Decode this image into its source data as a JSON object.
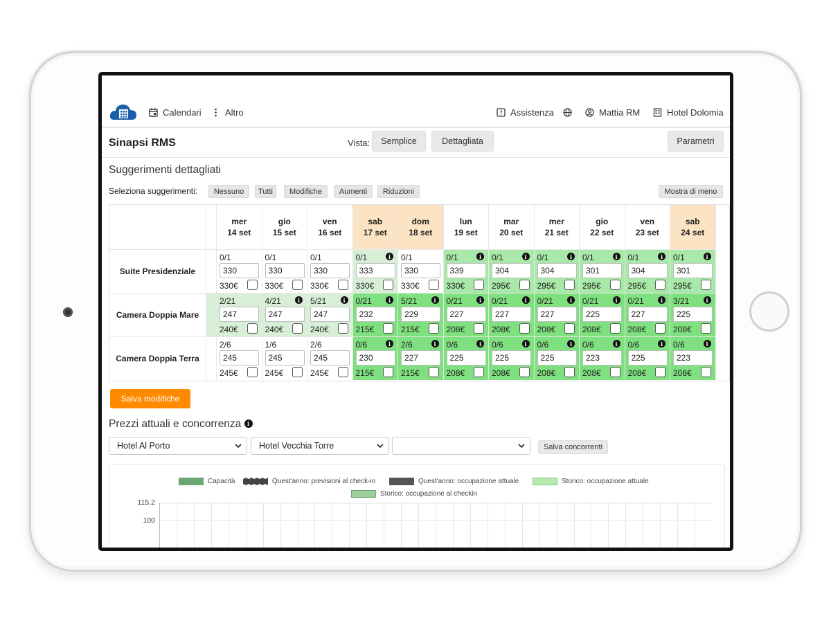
{
  "nav": {
    "items": [
      {
        "label": "Calendari",
        "icon": "calendar-icon"
      },
      {
        "label": "Altro",
        "icon": "more-vertical-icon"
      }
    ],
    "right": [
      {
        "label": "Assistenza",
        "icon": "help-icon"
      },
      {
        "label": "",
        "icon": "globe-icon"
      },
      {
        "label": "Mattia RM",
        "icon": "user-icon"
      },
      {
        "label": "Hotel Dolomia",
        "icon": "building-icon"
      }
    ]
  },
  "header": {
    "title": "Sinapsi RMS",
    "vista_label": "Vista:",
    "view_buttons": [
      "Semplice",
      "Dettagliata"
    ],
    "params_button": "Parametri"
  },
  "suggestions": {
    "title": "Suggerimenti dettagliati",
    "select_label": "Seleziona suggerimenti:",
    "chips": [
      "Nessuno",
      "Tutti",
      "Modifiche",
      "Aumenti",
      "Riduzioni"
    ],
    "show_less": "Mostra di meno"
  },
  "table": {
    "columns": [
      {
        "day": "mer",
        "date": "14 set",
        "weekend": false
      },
      {
        "day": "gio",
        "date": "15 set",
        "weekend": false
      },
      {
        "day": "ven",
        "date": "16 set",
        "weekend": false
      },
      {
        "day": "sab",
        "date": "17 set",
        "weekend": true
      },
      {
        "day": "dom",
        "date": "18 set",
        "weekend": true
      },
      {
        "day": "lun",
        "date": "19 set",
        "weekend": false
      },
      {
        "day": "mar",
        "date": "20 set",
        "weekend": false
      },
      {
        "day": "mer",
        "date": "21 set",
        "weekend": false
      },
      {
        "day": "gio",
        "date": "22 set",
        "weekend": false
      },
      {
        "day": "ven",
        "date": "23 set",
        "weekend": false
      },
      {
        "day": "sab",
        "date": "24 set",
        "weekend": true
      }
    ],
    "rows": [
      {
        "name": "Suite Presidenziale",
        "cells": [
          {
            "avail": "0/1",
            "value": "330",
            "price": "330€",
            "shade": "none",
            "info": false
          },
          {
            "avail": "0/1",
            "value": "330",
            "price": "330€",
            "shade": "none",
            "info": false
          },
          {
            "avail": "0/1",
            "value": "330",
            "price": "330€",
            "shade": "none",
            "info": false
          },
          {
            "avail": "0/1",
            "value": "333",
            "price": "330€",
            "shade": "light",
            "info": true
          },
          {
            "avail": "0/1",
            "value": "330",
            "price": "330€",
            "shade": "none",
            "info": false
          },
          {
            "avail": "0/1",
            "value": "339",
            "price": "330€",
            "shade": "mid",
            "info": true
          },
          {
            "avail": "0/1",
            "value": "304",
            "price": "295€",
            "shade": "mid",
            "info": true
          },
          {
            "avail": "0/1",
            "value": "304",
            "price": "295€",
            "shade": "mid",
            "info": true
          },
          {
            "avail": "0/1",
            "value": "301",
            "price": "295€",
            "shade": "mid",
            "info": true
          },
          {
            "avail": "0/1",
            "value": "304",
            "price": "295€",
            "shade": "mid",
            "info": true
          },
          {
            "avail": "0/1",
            "value": "301",
            "price": "295€",
            "shade": "mid",
            "info": true
          }
        ]
      },
      {
        "name": "Camera Doppia Mare",
        "cells": [
          {
            "avail": "2/21",
            "value": "247",
            "price": "240€",
            "shade": "light",
            "info": false
          },
          {
            "avail": "4/21",
            "value": "247",
            "price": "240€",
            "shade": "light",
            "info": true
          },
          {
            "avail": "5/21",
            "value": "247",
            "price": "240€",
            "shade": "light",
            "info": true
          },
          {
            "avail": "0/21",
            "value": "232",
            "price": "215€",
            "shade": "strong",
            "info": true
          },
          {
            "avail": "5/21",
            "value": "229",
            "price": "215€",
            "shade": "strong",
            "info": true
          },
          {
            "avail": "0/21",
            "value": "227",
            "price": "208€",
            "shade": "strong",
            "info": true
          },
          {
            "avail": "0/21",
            "value": "227",
            "price": "208€",
            "shade": "strong",
            "info": true
          },
          {
            "avail": "0/21",
            "value": "227",
            "price": "208€",
            "shade": "strong",
            "info": true
          },
          {
            "avail": "0/21",
            "value": "225",
            "price": "208€",
            "shade": "strong",
            "info": true
          },
          {
            "avail": "0/21",
            "value": "227",
            "price": "208€",
            "shade": "strong",
            "info": true
          },
          {
            "avail": "3/21",
            "value": "225",
            "price": "208€",
            "shade": "strong",
            "info": true
          }
        ]
      },
      {
        "name": "Camera Doppia Terra",
        "cells": [
          {
            "avail": "2/6",
            "value": "245",
            "price": "245€",
            "shade": "none",
            "info": false
          },
          {
            "avail": "1/6",
            "value": "245",
            "price": "245€",
            "shade": "none",
            "info": false
          },
          {
            "avail": "2/6",
            "value": "245",
            "price": "245€",
            "shade": "none",
            "info": false
          },
          {
            "avail": "0/6",
            "value": "230",
            "price": "215€",
            "shade": "strong",
            "info": true
          },
          {
            "avail": "2/6",
            "value": "227",
            "price": "215€",
            "shade": "strong",
            "info": true
          },
          {
            "avail": "0/6",
            "value": "225",
            "price": "208€",
            "shade": "strong",
            "info": true
          },
          {
            "avail": "0/6",
            "value": "225",
            "price": "208€",
            "shade": "strong",
            "info": true
          },
          {
            "avail": "0/6",
            "value": "225",
            "price": "208€",
            "shade": "strong",
            "info": true
          },
          {
            "avail": "0/6",
            "value": "223",
            "price": "208€",
            "shade": "strong",
            "info": true
          },
          {
            "avail": "0/6",
            "value": "225",
            "price": "208€",
            "shade": "strong",
            "info": true
          },
          {
            "avail": "0/6",
            "value": "223",
            "price": "208€",
            "shade": "strong",
            "info": true
          }
        ]
      }
    ]
  },
  "save_button": "Salva modifiche",
  "competition": {
    "title": "Prezzi attuali e concorrenza",
    "selects": [
      "Hotel Al Porto",
      "Hotel Vecchia Torre",
      ""
    ],
    "save_button": "Salva concorrenti"
  },
  "chart": {
    "legend": [
      {
        "label": "Capacità",
        "color": "#6aa672"
      },
      {
        "label": "Quest'anno: previsioni al check-in",
        "color": "#444444"
      },
      {
        "label": "Quest'anno: occupazione attuale",
        "color": "#555555"
      },
      {
        "label": "Storico: occupazione attuale",
        "color": "#b8eab0"
      },
      {
        "label": "Storico: occupazione al checkin",
        "color": "#9ccf9a"
      }
    ],
    "y_ticks": [
      "115.2",
      "100"
    ]
  },
  "colors": {
    "accent": "#ff8a00",
    "weekend_header": "#fbe3c3",
    "shade_light": "#d6efd6",
    "shade_mid": "#a8e8a8",
    "shade_strong": "#7fe07f"
  }
}
